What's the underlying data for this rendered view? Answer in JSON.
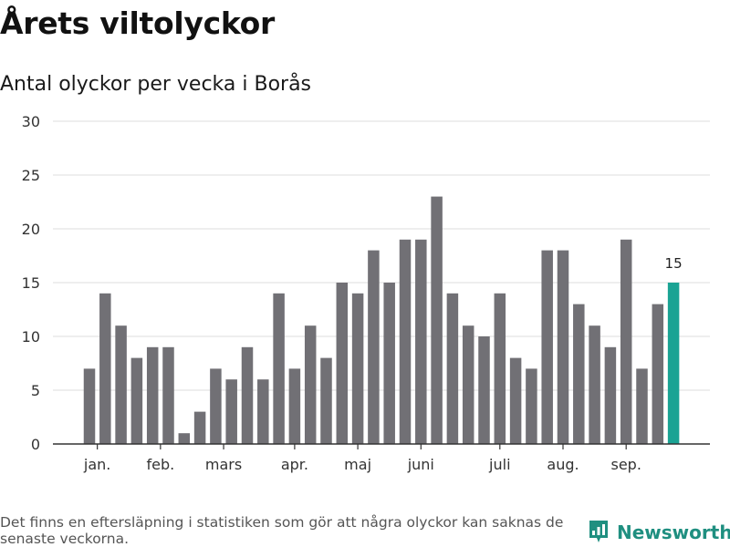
{
  "header": {
    "title": "Årets viltolyckor",
    "subtitle": "Antal olyckor per vecka i Borås"
  },
  "chart_data": {
    "type": "bar",
    "title": "Årets viltolyckor",
    "subtitle": "Antal olyckor per vecka i Borås",
    "xlabel": "",
    "ylabel": "",
    "ylim": [
      0,
      30
    ],
    "yticks": [
      0,
      5,
      10,
      15,
      20,
      25,
      30
    ],
    "grid": true,
    "values": [
      7,
      14,
      11,
      8,
      9,
      9,
      1,
      3,
      7,
      6,
      9,
      6,
      14,
      7,
      11,
      8,
      15,
      14,
      18,
      15,
      19,
      19,
      23,
      14,
      11,
      10,
      14,
      8,
      7,
      18,
      18,
      13,
      11,
      9,
      19,
      7,
      13,
      15
    ],
    "month_labels": [
      {
        "label": "jan.",
        "bar_index": 0.5
      },
      {
        "label": "feb.",
        "bar_index": 4.5
      },
      {
        "label": "mars",
        "bar_index": 8.5
      },
      {
        "label": "apr.",
        "bar_index": 13
      },
      {
        "label": "maj",
        "bar_index": 17
      },
      {
        "label": "juni",
        "bar_index": 21
      },
      {
        "label": "juli",
        "bar_index": 26
      },
      {
        "label": "aug.",
        "bar_index": 30
      },
      {
        "label": "sep.",
        "bar_index": 34
      }
    ],
    "highlight_index": 37,
    "highlight_label": "15",
    "colors": {
      "bar": "#717075",
      "highlight": "#1aa394",
      "grid": "#dddddd",
      "axis": "#333333"
    }
  },
  "footer": {
    "note": "Det finns en eftersläpning i statistiken som gör att några olyckor kan saknas de senaste veckorna.",
    "brand": "Newsworthy",
    "brand_icon": "newsworthy-logo-icon",
    "brand_color": "#1f8f80"
  }
}
